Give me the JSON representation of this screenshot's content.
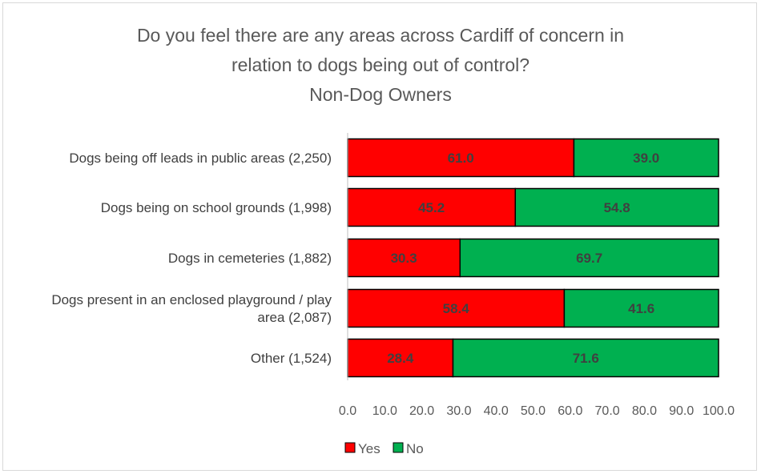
{
  "chart_data": {
    "type": "bar",
    "orientation": "horizontal",
    "stacked": true,
    "title": [
      "Do you feel there are any areas across Cardiff of concern in",
      "relation to dogs being out of control?",
      "Non-Dog Owners"
    ],
    "categories": [
      "Dogs being off leads in public areas (2,250)",
      "Dogs being on school grounds (1,998)",
      "Dogs in cemeteries (1,882)",
      "Dogs present in an enclosed playground / play area (2,087)",
      "Other (1,524)"
    ],
    "category_lines": [
      [
        "Dogs being off leads in public areas (2,250)"
      ],
      [
        "Dogs being on school grounds (1,998)"
      ],
      [
        "Dogs in cemeteries (1,882)"
      ],
      [
        "Dogs present in an enclosed playground / play",
        "area (2,087)"
      ],
      [
        "Other (1,524)"
      ]
    ],
    "series": [
      {
        "name": "Yes",
        "color": "#ff0000",
        "values": [
          61.0,
          45.2,
          30.3,
          58.4,
          28.4
        ],
        "labels": [
          "61.0",
          "45.2",
          "30.3",
          "58.4",
          "28.4"
        ]
      },
      {
        "name": "No",
        "color": "#00b050",
        "values": [
          39.0,
          54.8,
          69.7,
          41.6,
          71.6
        ],
        "labels": [
          "39.0",
          "54.8",
          "69.7",
          "41.6",
          "71.6"
        ]
      }
    ],
    "xlim": [
      0,
      100
    ],
    "x_ticks": [
      "0.0",
      "10.0",
      "20.0",
      "30.0",
      "40.0",
      "50.0",
      "60.0",
      "70.0",
      "80.0",
      "90.0",
      "100.0"
    ],
    "xlabel": "",
    "ylabel": "",
    "grid": false,
    "legend_position": "bottom"
  }
}
